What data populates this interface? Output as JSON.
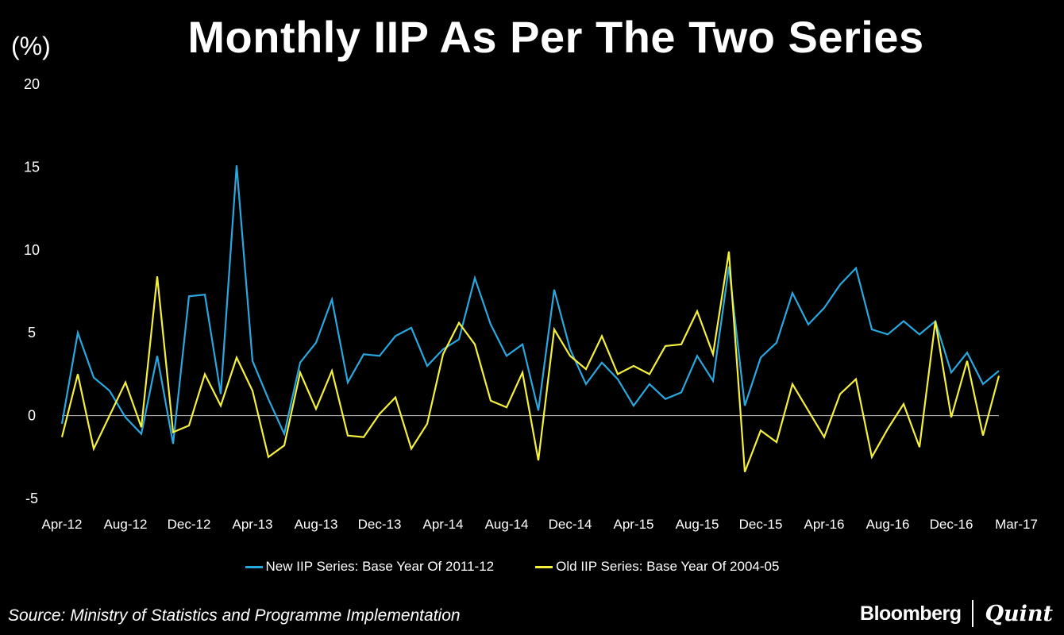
{
  "chart_data": {
    "type": "line",
    "title": "Monthly IIP As Per The Two Series",
    "ylabel": "(%)",
    "xlabel": "",
    "ylim": [
      -5,
      20
    ],
    "yticks": [
      -5,
      0,
      5,
      10,
      15,
      20
    ],
    "grid": false,
    "legend_position": "bottom",
    "x": [
      "Apr-12",
      "May-12",
      "Jun-12",
      "Jul-12",
      "Aug-12",
      "Sep-12",
      "Oct-12",
      "Nov-12",
      "Dec-12",
      "Jan-13",
      "Feb-13",
      "Mar-13",
      "Apr-13",
      "May-13",
      "Jun-13",
      "Jul-13",
      "Aug-13",
      "Sep-13",
      "Oct-13",
      "Nov-13",
      "Dec-13",
      "Jan-14",
      "Feb-14",
      "Mar-14",
      "Apr-14",
      "May-14",
      "Jun-14",
      "Jul-14",
      "Aug-14",
      "Sep-14",
      "Oct-14",
      "Nov-14",
      "Dec-14",
      "Jan-15",
      "Feb-15",
      "Mar-15",
      "Apr-15",
      "May-15",
      "Jun-15",
      "Jul-15",
      "Aug-15",
      "Sep-15",
      "Oct-15",
      "Nov-15",
      "Dec-15",
      "Jan-16",
      "Feb-16",
      "Mar-16",
      "Apr-16",
      "May-16",
      "Jun-16",
      "Jul-16",
      "Aug-16",
      "Sep-16",
      "Oct-16",
      "Nov-16",
      "Dec-16",
      "Jan-17",
      "Feb-17",
      "Mar-17"
    ],
    "x_tick_labels": [
      "Apr-12",
      "Aug-12",
      "Dec-12",
      "Apr-13",
      "Aug-13",
      "Dec-13",
      "Apr-14",
      "Aug-14",
      "Dec-14",
      "Apr-15",
      "Aug-15",
      "Dec-15",
      "Apr-16",
      "Aug-16",
      "Dec-16",
      "Mar-17"
    ],
    "series": [
      {
        "name": "New IIP Series: Base Year Of 2011-12",
        "color": "#29a8e0",
        "values": [
          -0.5,
          5.0,
          2.3,
          1.5,
          -0.1,
          -1.1,
          3.6,
          -1.7,
          7.2,
          7.3,
          1.3,
          15.1,
          3.3,
          1.0,
          -1.1,
          3.2,
          4.4,
          7.0,
          2.0,
          3.7,
          3.6,
          4.8,
          5.3,
          3.0,
          4.0,
          4.6,
          8.3,
          5.5,
          3.6,
          4.3,
          0.3,
          7.6,
          4.0,
          1.9,
          3.2,
          2.2,
          0.6,
          1.9,
          1.0,
          1.4,
          3.6,
          2.1,
          9.0,
          0.6,
          3.5,
          4.4,
          7.4,
          5.5,
          6.5,
          7.9,
          8.9,
          5.2,
          4.9,
          5.7,
          4.9,
          5.7,
          2.6,
          3.8,
          1.9,
          2.7
        ]
      },
      {
        "name": "Old IIP Series: Base Year Of 2004-05",
        "color": "#f4f03c",
        "values": [
          -1.3,
          2.5,
          -2.0,
          0.0,
          2.0,
          -0.7,
          8.4,
          -1.0,
          -0.6,
          2.5,
          0.6,
          3.5,
          1.5,
          -2.5,
          -1.8,
          2.6,
          0.4,
          2.7,
          -1.2,
          -1.3,
          0.1,
          1.1,
          -2.0,
          -0.5,
          3.7,
          5.6,
          4.3,
          0.9,
          0.5,
          2.6,
          -2.7,
          5.2,
          3.6,
          2.8,
          4.8,
          2.5,
          3.0,
          2.5,
          4.2,
          4.3,
          6.3,
          3.7,
          9.9,
          -3.4,
          -0.9,
          -1.6,
          1.9,
          0.3,
          -1.3,
          1.3,
          2.2,
          -2.5,
          -0.8,
          0.7,
          -1.9,
          5.7,
          -0.1,
          3.3,
          -1.2,
          2.4
        ]
      }
    ]
  },
  "source": "Source: Ministry of Statistics and Programme Implementation",
  "brand": {
    "bloomberg": "Bloomberg",
    "quint": "Quint"
  },
  "colors": {
    "background": "#000000",
    "axis": "#bfbfbf",
    "text": "#ffffff"
  }
}
